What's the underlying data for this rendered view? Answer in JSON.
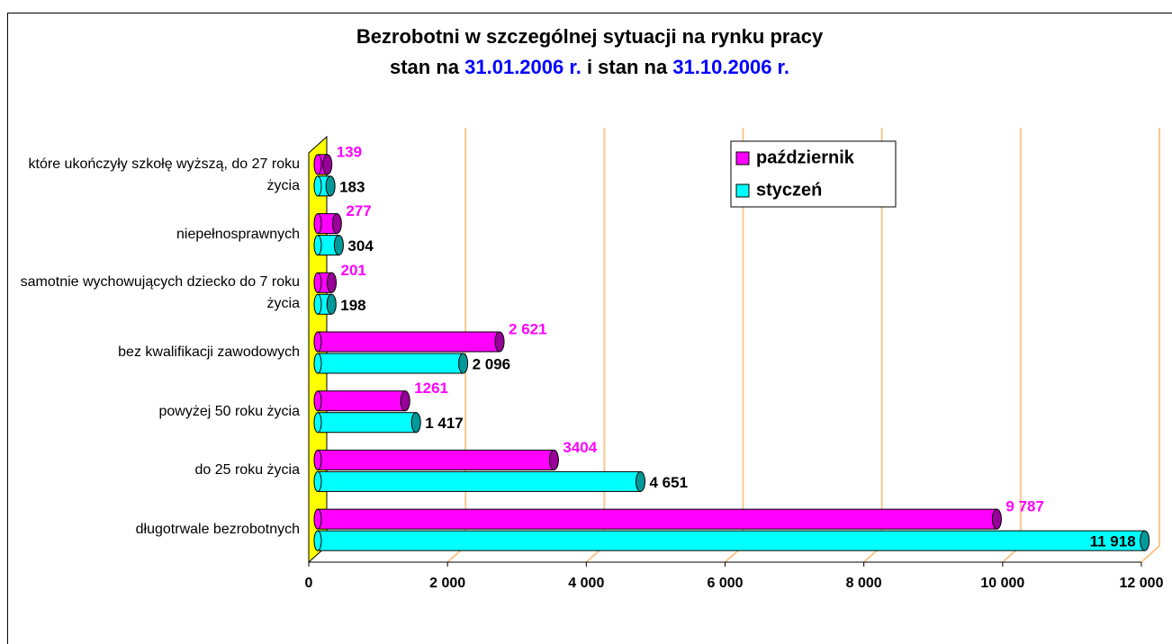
{
  "chart_data": {
    "type": "bar",
    "orientation": "horizontal",
    "title": "Bezrobotni w szczególnej sytuacji na rynku pracy",
    "subtitle_parts": [
      "stan na",
      "31.01.2006 r.",
      "i stan na",
      "31.10.2006 r."
    ],
    "categories": [
      "które ukończyły szkołę wyższą, do 27 roku życia",
      "niepełnosprawnych",
      "samotnie wychowujących dziecko do 7 roku życia",
      "bez kwalifikacji zawodowych",
      "powyżej 50 roku życia",
      "do 25 roku życia",
      "długotrwale bezrobotnych"
    ],
    "series": [
      {
        "name": "październik",
        "color": "#ff00ff",
        "label_color": "#ff00ff",
        "values": [
          139,
          277,
          201,
          2621,
          1261,
          3404,
          9787
        ],
        "value_labels": [
          "139",
          "277",
          "201",
          "2 621",
          "1261",
          "3404",
          "9 787"
        ]
      },
      {
        "name": "styczeń",
        "color": "#00ffff",
        "label_color": "#000000",
        "values": [
          183,
          304,
          198,
          2096,
          1417,
          4651,
          11918
        ],
        "value_labels": [
          "183",
          "304",
          "198",
          "2 096",
          "1 417",
          "4 651",
          "11 918"
        ]
      }
    ],
    "xlim": [
      0,
      12000
    ],
    "xticks": [
      0,
      {
        "value": 2000,
        "label": "2 000"
      },
      {
        "value": 4000,
        "label": "4 000"
      },
      {
        "value": 6000,
        "label": "6 000"
      },
      {
        "value": 8000,
        "label": "8 000"
      },
      {
        "value": 10000,
        "label": "10 000"
      },
      {
        "value": 12000,
        "label": "12 000"
      }
    ],
    "grid": true,
    "legend": "top-right"
  }
}
